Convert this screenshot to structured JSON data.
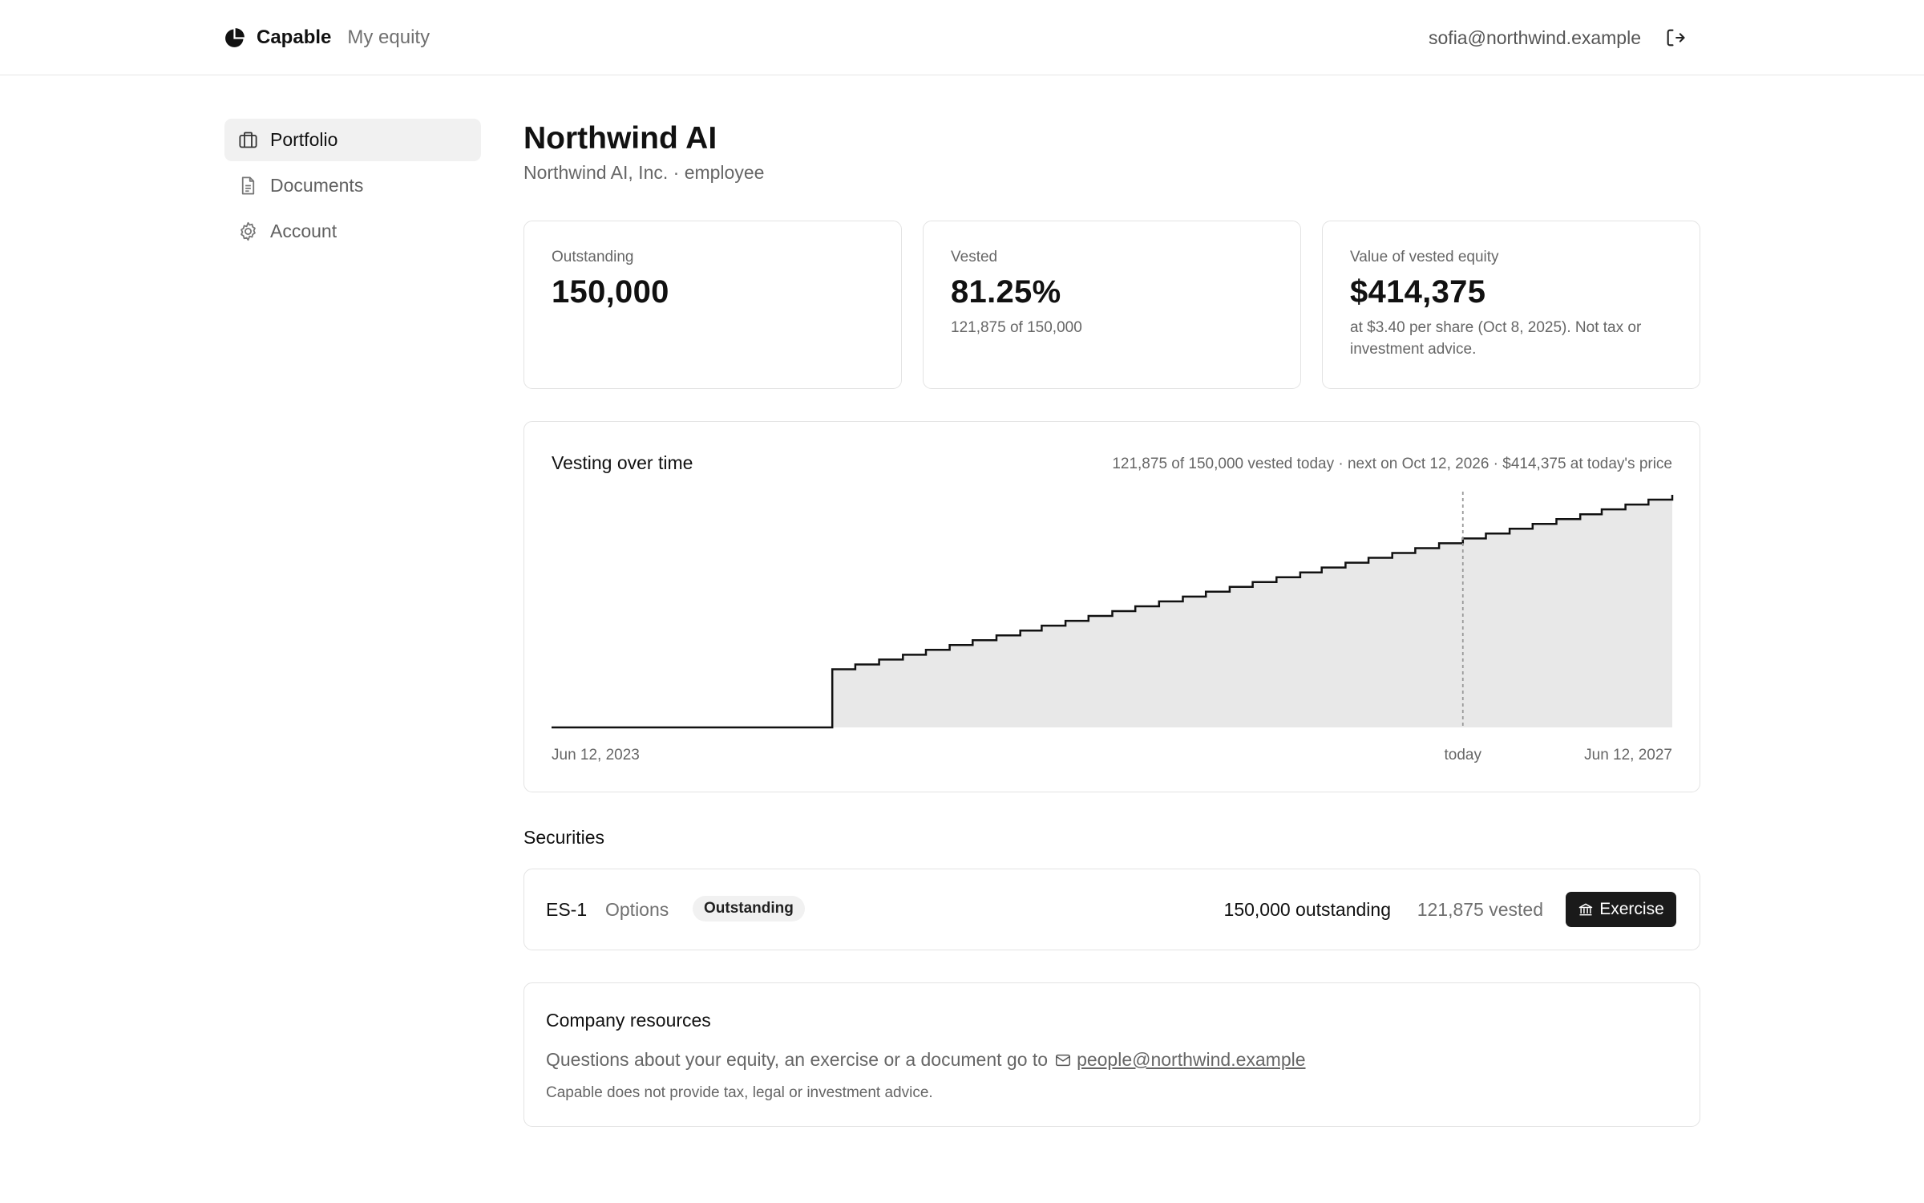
{
  "header": {
    "brand_name": "Capable",
    "brand_sub": "My equity",
    "user_email": "sofia@northwind.example",
    "logout_icon": "log-out-icon"
  },
  "sidebar": {
    "items": [
      {
        "label": "Portfolio",
        "icon": "briefcase-icon",
        "active": true
      },
      {
        "label": "Documents",
        "icon": "document-icon",
        "active": false
      },
      {
        "label": "Account",
        "icon": "gear-icon",
        "active": false
      }
    ]
  },
  "company": {
    "title": "Northwind AI",
    "subtitle": "Northwind AI, Inc. · employee"
  },
  "cards": [
    {
      "label": "Outstanding",
      "value": "150,000",
      "note": ""
    },
    {
      "label": "Vested",
      "value": "81.25%",
      "note": "121,875 of 150,000"
    },
    {
      "label": "Value of vested equity",
      "value": "$414,375",
      "note": "at $3.40 per share (Oct 8, 2025). Not tax or investment advice."
    }
  ],
  "chart": {
    "title": "Vesting over time",
    "summary": "121,875 of 150,000 vested today · next on Oct 12, 2026 · $414,375 at today's price",
    "start_label": "Jun 12, 2023",
    "today_label": "today",
    "end_label": "Jun 12, 2027"
  },
  "chart_data": {
    "type": "area",
    "title": "Vesting over time",
    "x_start": "2023-06-12",
    "x_end": "2027-06-12",
    "today": "2026-09-12",
    "ylim": [
      0,
      150000
    ],
    "total_shares": 150000,
    "cliff_months": 12,
    "cliff_shares": 37500,
    "monthly_shares": 3125,
    "total_months": 48,
    "vested_today": 121875,
    "grid": false,
    "x_tick_labels": [
      "Jun 12, 2023",
      "today",
      "Jun 12, 2027"
    ]
  },
  "securities": {
    "heading": "Securities",
    "rows": [
      {
        "id": "ES-1",
        "type": "Options",
        "status": "Outstanding",
        "outstanding": "150,000 outstanding",
        "vested": "121,875 vested",
        "action": "Exercise"
      }
    ]
  },
  "resources": {
    "title": "Company resources",
    "text": "Questions about your equity, an exercise or a document go to",
    "email": "people@northwind.example",
    "disclaimer": "Capable does not provide tax, legal or investment advice."
  },
  "colors": {
    "accent": "#111111",
    "chart_fill": "#e8e8e8",
    "border": "#e3e3e3"
  }
}
